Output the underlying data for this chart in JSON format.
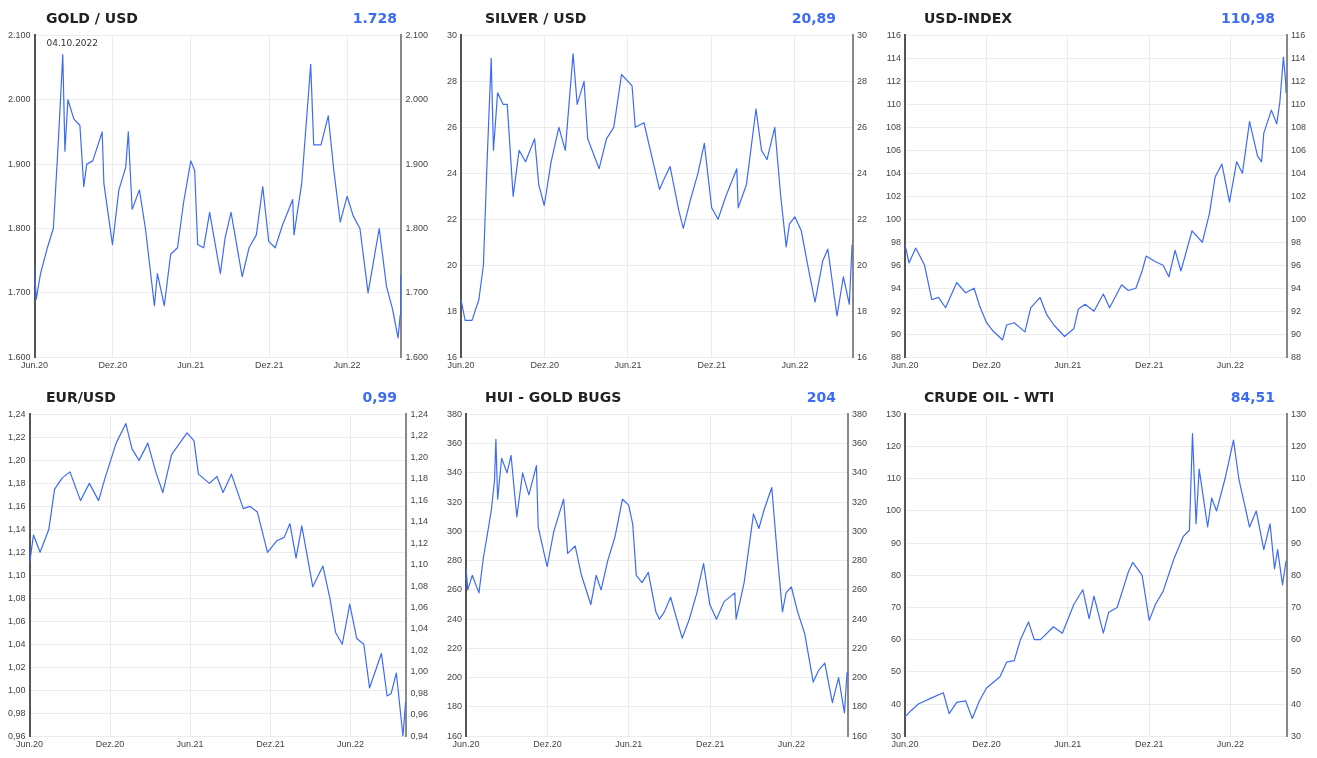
{
  "chart_data": [
    {
      "type": "line",
      "title": "GOLD / USD",
      "annotations": [
        "1.728",
        "04.10.2022"
      ],
      "grid": true,
      "legend": false,
      "marker": "none",
      "x": [
        "2020-06-01",
        "2020-06-05",
        "2020-06-15",
        "2020-07-01",
        "2020-07-15",
        "2020-07-27",
        "2020-08-06",
        "2020-08-11",
        "2020-08-18",
        "2020-09-01",
        "2020-09-15",
        "2020-09-24",
        "2020-10-01",
        "2020-10-15",
        "2020-11-06",
        "2020-11-10",
        "2020-11-30",
        "2020-12-15",
        "2020-12-31",
        "2021-01-06",
        "2021-01-15",
        "2021-02-01",
        "2021-02-15",
        "2021-03-08",
        "2021-03-15",
        "2021-03-31",
        "2021-04-15",
        "2021-05-01",
        "2021-05-15",
        "2021-06-01",
        "2021-06-10",
        "2021-06-17",
        "2021-07-01",
        "2021-07-15",
        "2021-08-09",
        "2021-08-20",
        "2021-09-03",
        "2021-09-29",
        "2021-10-15",
        "2021-11-01",
        "2021-11-16",
        "2021-11-30",
        "2021-12-15",
        "2022-01-01",
        "2022-01-25",
        "2022-01-28",
        "2022-02-15",
        "2022-03-08",
        "2022-03-15",
        "2022-04-01",
        "2022-04-18",
        "2022-05-01",
        "2022-05-16",
        "2022-06-01",
        "2022-06-15",
        "2022-07-01",
        "2022-07-20",
        "2022-08-15",
        "2022-09-01",
        "2022-09-15",
        "2022-09-28",
        "2022-10-03",
        "2022-10-04"
      ],
      "series": [
        {
          "color": "#3d6cf4",
          "values": [
            1740,
            1690,
            1730,
            1770,
            1800,
            1940,
            2070,
            1920,
            2000,
            1970,
            1960,
            1865,
            1900,
            1905,
            1950,
            1870,
            1775,
            1860,
            1895,
            1950,
            1830,
            1860,
            1800,
            1680,
            1730,
            1680,
            1760,
            1770,
            1840,
            1905,
            1890,
            1775,
            1770,
            1825,
            1730,
            1785,
            1825,
            1725,
            1770,
            1790,
            1865,
            1780,
            1770,
            1805,
            1845,
            1790,
            1870,
            2055,
            1930,
            1930,
            1975,
            1890,
            1810,
            1850,
            1820,
            1800,
            1700,
            1800,
            1710,
            1675,
            1630,
            1665,
            1728
          ]
        }
      ],
      "xlim": [
        "2020-06-01",
        "2022-10-06"
      ],
      "xticks": [
        {
          "value": "2020-06-01",
          "label": "Jun.20"
        },
        {
          "value": "2020-12-01",
          "label": "Dez.20"
        },
        {
          "value": "2021-06-01",
          "label": "Jun.21"
        },
        {
          "value": "2021-12-01",
          "label": "Dez.21"
        },
        {
          "value": "2022-06-01",
          "label": "Jun.22"
        }
      ],
      "ylim": [
        1600,
        2100
      ],
      "yticks": [
        {
          "value": 1600,
          "label": "1.600"
        },
        {
          "value": 1700,
          "label": "1.700"
        },
        {
          "value": 1800,
          "label": "1.800"
        },
        {
          "value": 1900,
          "label": "1.900"
        },
        {
          "value": 2000,
          "label": "2.000"
        },
        {
          "value": 2100,
          "label": "2.100"
        }
      ],
      "y2lim": [
        1600,
        2100
      ],
      "y2ticks": [
        {
          "value": 1600,
          "label": "1.600"
        },
        {
          "value": 1700,
          "label": "1.700"
        },
        {
          "value": 1800,
          "label": "1.800"
        },
        {
          "value": 1900,
          "label": "1.900"
        },
        {
          "value": 2000,
          "label": "2.000"
        },
        {
          "value": 2100,
          "label": "2.100"
        }
      ]
    },
    {
      "type": "line",
      "title": "SILVER / USD",
      "annotations": [
        "20,89"
      ],
      "grid": true,
      "legend": false,
      "marker": "none",
      "x": [
        "2020-06-01",
        "2020-06-10",
        "2020-06-25",
        "2020-07-10",
        "2020-07-20",
        "2020-07-28",
        "2020-08-06",
        "2020-08-11",
        "2020-08-20",
        "2020-09-01",
        "2020-09-10",
        "2020-09-23",
        "2020-10-06",
        "2020-10-20",
        "2020-11-09",
        "2020-11-18",
        "2020-11-30",
        "2020-12-15",
        "2021-01-01",
        "2021-01-15",
        "2021-02-01",
        "2021-02-10",
        "2021-02-25",
        "2021-03-05",
        "2021-03-30",
        "2021-04-15",
        "2021-05-01",
        "2021-05-18",
        "2021-06-01",
        "2021-06-10",
        "2021-06-17",
        "2021-07-06",
        "2021-07-20",
        "2021-08-09",
        "2021-08-20",
        "2021-09-01",
        "2021-09-20",
        "2021-09-30",
        "2021-10-15",
        "2021-11-01",
        "2021-11-15",
        "2021-12-01",
        "2021-12-15",
        "2022-01-01",
        "2022-01-25",
        "2022-01-28",
        "2022-02-15",
        "2022-03-08",
        "2022-03-20",
        "2022-04-01",
        "2022-04-18",
        "2022-05-01",
        "2022-05-13",
        "2022-05-20",
        "2022-06-01",
        "2022-06-15",
        "2022-07-01",
        "2022-07-15",
        "2022-08-01",
        "2022-08-12",
        "2022-09-01",
        "2022-09-15",
        "2022-09-28",
        "2022-10-04"
      ],
      "series": [
        {
          "color": "#3d6cf4",
          "values": [
            18.5,
            17.6,
            17.6,
            18.5,
            20.0,
            24.5,
            29.0,
            25.0,
            27.5,
            27.0,
            27.0,
            23.0,
            25.0,
            24.5,
            25.5,
            23.5,
            22.6,
            24.5,
            26.0,
            25.0,
            29.2,
            27.0,
            28.0,
            25.5,
            24.2,
            25.5,
            26.0,
            28.3,
            28.0,
            27.8,
            26.0,
            26.2,
            25.0,
            23.3,
            23.8,
            24.3,
            22.4,
            21.6,
            22.8,
            24.0,
            25.3,
            22.5,
            22.0,
            23.0,
            24.2,
            22.5,
            23.5,
            26.8,
            25.0,
            24.6,
            26.0,
            23.0,
            20.8,
            21.8,
            22.1,
            21.5,
            19.8,
            18.4,
            20.2,
            20.7,
            17.8,
            19.5,
            18.3,
            20.89
          ]
        }
      ],
      "xlim": [
        "2020-06-01",
        "2022-10-06"
      ],
      "xticks": [
        {
          "value": "2020-06-01",
          "label": "Jun.20"
        },
        {
          "value": "2020-12-01",
          "label": "Dez.20"
        },
        {
          "value": "2021-06-01",
          "label": "Jun.21"
        },
        {
          "value": "2021-12-01",
          "label": "Dez.21"
        },
        {
          "value": "2022-06-01",
          "label": "Jun.22"
        }
      ],
      "ylim": [
        16,
        30
      ],
      "yticks": [
        16,
        18,
        20,
        22,
        24,
        26,
        28,
        30
      ],
      "y2lim": [
        16,
        30
      ],
      "y2ticks": [
        16,
        18,
        20,
        22,
        24,
        26,
        28,
        30
      ]
    },
    {
      "type": "line",
      "title": "USD-INDEX",
      "annotations": [
        "110,98"
      ],
      "grid": true,
      "legend": false,
      "marker": "none",
      "x": [
        "2020-06-01",
        "2020-06-10",
        "2020-06-25",
        "2020-07-15",
        "2020-07-31",
        "2020-08-15",
        "2020-08-31",
        "2020-09-25",
        "2020-10-15",
        "2020-11-03",
        "2020-11-15",
        "2020-12-01",
        "2020-12-15",
        "2021-01-06",
        "2021-01-15",
        "2021-02-01",
        "2021-02-25",
        "2021-03-10",
        "2021-03-31",
        "2021-04-15",
        "2021-05-01",
        "2021-05-25",
        "2021-06-15",
        "2021-06-25",
        "2021-07-10",
        "2021-07-30",
        "2021-08-20",
        "2021-09-03",
        "2021-09-30",
        "2021-10-15",
        "2021-11-01",
        "2021-11-15",
        "2021-11-24",
        "2021-12-15",
        "2022-01-01",
        "2022-01-14",
        "2022-01-28",
        "2022-02-10",
        "2022-03-07",
        "2022-03-30",
        "2022-04-15",
        "2022-04-28",
        "2022-05-13",
        "2022-05-30",
        "2022-06-15",
        "2022-06-28",
        "2022-07-14",
        "2022-08-01",
        "2022-08-10",
        "2022-08-15",
        "2022-09-01",
        "2022-09-13",
        "2022-09-20",
        "2022-09-28",
        "2022-10-03",
        "2022-10-04"
      ],
      "series": [
        {
          "color": "#3d6cf4",
          "values": [
            97.8,
            96.2,
            97.5,
            96.0,
            93.0,
            93.2,
            92.3,
            94.5,
            93.6,
            94.0,
            92.5,
            91.0,
            90.3,
            89.5,
            90.8,
            91.0,
            90.2,
            92.3,
            93.2,
            91.7,
            90.8,
            89.8,
            90.5,
            92.2,
            92.6,
            92.0,
            93.5,
            92.3,
            94.3,
            93.8,
            94.0,
            95.5,
            96.8,
            96.3,
            96.0,
            95.0,
            97.3,
            95.5,
            99.0,
            98.0,
            100.5,
            103.7,
            104.8,
            101.5,
            105.0,
            104.0,
            108.5,
            105.5,
            105.0,
            107.5,
            109.5,
            108.3,
            110.2,
            114.1,
            112.0,
            110.98
          ]
        }
      ],
      "xlim": [
        "2020-06-01",
        "2022-10-06"
      ],
      "xticks": [
        {
          "value": "2020-06-01",
          "label": "Jun.20"
        },
        {
          "value": "2020-12-01",
          "label": "Dez.20"
        },
        {
          "value": "2021-06-01",
          "label": "Jun.21"
        },
        {
          "value": "2021-12-01",
          "label": "Dez.21"
        },
        {
          "value": "2022-06-01",
          "label": "Jun.22"
        }
      ],
      "ylim": [
        88,
        116
      ],
      "yticks": [
        88,
        90,
        92,
        94,
        96,
        98,
        100,
        102,
        104,
        106,
        108,
        110,
        112,
        114,
        116
      ],
      "y2lim": [
        88,
        116
      ],
      "y2ticks": [
        88,
        90,
        92,
        94,
        96,
        98,
        100,
        102,
        104,
        106,
        108,
        110,
        112,
        114,
        116
      ]
    },
    {
      "type": "line",
      "title": "EUR/USD",
      "annotations": [
        "0,99"
      ],
      "grid": true,
      "legend": false,
      "marker": "none",
      "x": [
        "2020-06-01",
        "2020-06-10",
        "2020-06-25",
        "2020-07-15",
        "2020-07-28",
        "2020-08-15",
        "2020-09-01",
        "2020-09-25",
        "2020-10-15",
        "2020-11-05",
        "2020-11-20",
        "2020-12-15",
        "2021-01-06",
        "2021-01-20",
        "2021-02-05",
        "2021-02-25",
        "2021-03-15",
        "2021-03-31",
        "2021-04-20",
        "2021-05-25",
        "2021-06-10",
        "2021-06-20",
        "2021-07-15",
        "2021-08-01",
        "2021-08-15",
        "2021-09-03",
        "2021-09-30",
        "2021-10-15",
        "2021-11-01",
        "2021-11-24",
        "2021-12-15",
        "2022-01-01",
        "2022-01-14",
        "2022-01-28",
        "2022-02-10",
        "2022-03-07",
        "2022-03-30",
        "2022-04-15",
        "2022-04-28",
        "2022-05-13",
        "2022-05-30",
        "2022-06-15",
        "2022-07-01",
        "2022-07-14",
        "2022-08-01",
        "2022-08-10",
        "2022-08-23",
        "2022-09-01",
        "2022-09-13",
        "2022-09-28",
        "2022-10-04"
      ],
      "series": [
        {
          "color": "#3d6cf4",
          "values": [
            1.11,
            1.135,
            1.12,
            1.14,
            1.175,
            1.185,
            1.19,
            1.165,
            1.18,
            1.165,
            1.185,
            1.215,
            1.232,
            1.21,
            1.2,
            1.215,
            1.19,
            1.172,
            1.205,
            1.224,
            1.217,
            1.188,
            1.18,
            1.186,
            1.172,
            1.188,
            1.158,
            1.16,
            1.155,
            1.12,
            1.13,
            1.133,
            1.145,
            1.115,
            1.143,
            1.09,
            1.108,
            1.08,
            1.05,
            1.04,
            1.075,
            1.045,
            1.04,
            1.002,
            1.022,
            1.032,
            0.995,
            0.997,
            1.015,
            0.96,
            0.99
          ]
        }
      ],
      "xlim": [
        "2020-06-01",
        "2022-10-06"
      ],
      "xticks": [
        {
          "value": "2020-06-01",
          "label": "Jun.20"
        },
        {
          "value": "2020-12-01",
          "label": "Dez.20"
        },
        {
          "value": "2021-06-01",
          "label": "Jun.21"
        },
        {
          "value": "2021-12-01",
          "label": "Dez.21"
        },
        {
          "value": "2022-06-01",
          "label": "Jun.22"
        }
      ],
      "ylim": [
        0.96,
        1.24
      ],
      "yticks": [
        {
          "value": 0.96,
          "label": "0,96"
        },
        {
          "value": 0.98,
          "label": "0,98"
        },
        {
          "value": 1.0,
          "label": "1,00"
        },
        {
          "value": 1.02,
          "label": "1,02"
        },
        {
          "value": 1.04,
          "label": "1,04"
        },
        {
          "value": 1.06,
          "label": "1,06"
        },
        {
          "value": 1.08,
          "label": "1,08"
        },
        {
          "value": 1.1,
          "label": "1,10"
        },
        {
          "value": 1.12,
          "label": "1,12"
        },
        {
          "value": 1.14,
          "label": "1,14"
        },
        {
          "value": 1.16,
          "label": "1,16"
        },
        {
          "value": 1.18,
          "label": "1,18"
        },
        {
          "value": 1.2,
          "label": "1,20"
        },
        {
          "value": 1.22,
          "label": "1,22"
        },
        {
          "value": 1.24,
          "label": "1,24"
        }
      ],
      "y2lim": [
        0.94,
        1.24
      ],
      "y2ticks": [
        {
          "value": 0.94,
          "label": "0,94"
        },
        {
          "value": 0.96,
          "label": "0,96"
        },
        {
          "value": 0.98,
          "label": "0,98"
        },
        {
          "value": 1.0,
          "label": "1,00"
        },
        {
          "value": 1.02,
          "label": "1,02"
        },
        {
          "value": 1.04,
          "label": "1,04"
        },
        {
          "value": 1.06,
          "label": "1,06"
        },
        {
          "value": 1.08,
          "label": "1,08"
        },
        {
          "value": 1.1,
          "label": "1,10"
        },
        {
          "value": 1.12,
          "label": "1,12"
        },
        {
          "value": 1.14,
          "label": "1,14"
        },
        {
          "value": 1.16,
          "label": "1,16"
        },
        {
          "value": 1.18,
          "label": "1,18"
        },
        {
          "value": 1.2,
          "label": "1,20"
        },
        {
          "value": 1.22,
          "label": "1,22"
        },
        {
          "value": 1.24,
          "label": "1,24"
        }
      ]
    },
    {
      "type": "line",
      "title": "HUI - GOLD BUGS",
      "annotations": [
        "204"
      ],
      "grid": true,
      "legend": false,
      "marker": "none",
      "x": [
        "2020-06-01",
        "2020-06-05",
        "2020-06-15",
        "2020-06-30",
        "2020-07-10",
        "2020-07-20",
        "2020-07-28",
        "2020-08-04",
        "2020-08-07",
        "2020-08-11",
        "2020-08-20",
        "2020-09-01",
        "2020-09-10",
        "2020-09-23",
        "2020-10-06",
        "2020-10-20",
        "2020-11-06",
        "2020-11-10",
        "2020-11-30",
        "2020-12-15",
        "2021-01-06",
        "2021-01-15",
        "2021-02-01",
        "2021-02-15",
        "2021-03-08",
        "2021-03-20",
        "2021-03-31",
        "2021-04-15",
        "2021-05-01",
        "2021-05-18",
        "2021-06-01",
        "2021-06-10",
        "2021-06-18",
        "2021-07-01",
        "2021-07-15",
        "2021-08-01",
        "2021-08-09",
        "2021-08-20",
        "2021-09-03",
        "2021-09-29",
        "2021-10-15",
        "2021-11-01",
        "2021-11-16",
        "2021-11-30",
        "2021-12-15",
        "2022-01-01",
        "2022-01-25",
        "2022-01-28",
        "2022-02-15",
        "2022-03-08",
        "2022-03-20",
        "2022-04-01",
        "2022-04-18",
        "2022-05-01",
        "2022-05-12",
        "2022-05-20",
        "2022-06-01",
        "2022-06-15",
        "2022-07-01",
        "2022-07-20",
        "2022-08-01",
        "2022-08-15",
        "2022-09-01",
        "2022-09-15",
        "2022-09-28",
        "2022-10-04"
      ],
      "series": [
        {
          "color": "#3d6cf4",
          "values": [
            275,
            260,
            270,
            258,
            282,
            300,
            315,
            335,
            363,
            322,
            350,
            340,
            352,
            310,
            340,
            325,
            345,
            303,
            276,
            300,
            322,
            285,
            290,
            270,
            250,
            270,
            260,
            280,
            296,
            322,
            318,
            305,
            270,
            265,
            272,
            245,
            240,
            245,
            255,
            227,
            240,
            258,
            278,
            250,
            240,
            252,
            258,
            240,
            265,
            312,
            302,
            315,
            330,
            282,
            245,
            258,
            262,
            245,
            230,
            197,
            205,
            210,
            183,
            200,
            176,
            204
          ]
        }
      ],
      "xlim": [
        "2020-06-01",
        "2022-10-06"
      ],
      "xticks": [
        {
          "value": "2020-06-01",
          "label": "Jun.20"
        },
        {
          "value": "2020-12-01",
          "label": "Dez.20"
        },
        {
          "value": "2021-06-01",
          "label": "Jun.21"
        },
        {
          "value": "2021-12-01",
          "label": "Dez.21"
        },
        {
          "value": "2022-06-01",
          "label": "Jun.22"
        }
      ],
      "ylim": [
        160,
        380
      ],
      "yticks": [
        160,
        180,
        200,
        220,
        240,
        260,
        280,
        300,
        320,
        340,
        360,
        380
      ],
      "y2lim": [
        160,
        380
      ],
      "y2ticks": [
        160,
        180,
        200,
        220,
        240,
        260,
        280,
        300,
        320,
        340,
        360,
        380
      ]
    },
    {
      "type": "line",
      "title": "CRUDE OIL - WTI",
      "annotations": [
        "84,51"
      ],
      "grid": true,
      "legend": false,
      "marker": "none",
      "x": [
        "2020-06-01",
        "2020-06-15",
        "2020-07-01",
        "2020-08-01",
        "2020-08-26",
        "2020-09-08",
        "2020-09-25",
        "2020-10-15",
        "2020-10-30",
        "2020-11-15",
        "2020-12-01",
        "2020-12-31",
        "2021-01-15",
        "2021-02-01",
        "2021-02-15",
        "2021-03-05",
        "2021-03-18",
        "2021-04-01",
        "2021-04-30",
        "2021-05-20",
        "2021-06-15",
        "2021-07-05",
        "2021-07-19",
        "2021-07-30",
        "2021-08-20",
        "2021-09-01",
        "2021-09-20",
        "2021-10-15",
        "2021-10-25",
        "2021-11-15",
        "2021-12-01",
        "2021-12-15",
        "2022-01-01",
        "2022-01-25",
        "2022-02-15",
        "2022-03-01",
        "2022-03-08",
        "2022-03-16",
        "2022-03-23",
        "2022-04-11",
        "2022-04-20",
        "2022-05-01",
        "2022-05-20",
        "2022-06-08",
        "2022-06-20",
        "2022-07-14",
        "2022-07-29",
        "2022-08-15",
        "2022-08-29",
        "2022-09-08",
        "2022-09-15",
        "2022-09-26",
        "2022-10-04"
      ],
      "series": [
        {
          "color": "#3d6cf4",
          "values": [
            36,
            38,
            40,
            42,
            43.5,
            37,
            40.5,
            41,
            35.5,
            41,
            45,
            48.5,
            53,
            53.5,
            60,
            65.5,
            60,
            60,
            64,
            62,
            71,
            75.5,
            66.5,
            73.5,
            62,
            68.5,
            70,
            81,
            84,
            80,
            66,
            71,
            75,
            85,
            92,
            94,
            124,
            96,
            113,
            95,
            104,
            100,
            110,
            122,
            110,
            95,
            100,
            88,
            96,
            82,
            88,
            77,
            84.51
          ]
        }
      ],
      "xlim": [
        "2020-06-01",
        "2022-10-06"
      ],
      "xticks": [
        {
          "value": "2020-06-01",
          "label": "Jun.20"
        },
        {
          "value": "2020-12-01",
          "label": "Dez.20"
        },
        {
          "value": "2021-06-01",
          "label": "Jun.21"
        },
        {
          "value": "2021-12-01",
          "label": "Dez.21"
        },
        {
          "value": "2022-06-01",
          "label": "Jun.22"
        }
      ],
      "ylim": [
        30,
        130
      ],
      "yticks": [
        30,
        40,
        50,
        60,
        70,
        80,
        90,
        100,
        110,
        120,
        130
      ],
      "y2lim": [
        30,
        130
      ],
      "y2ticks": [
        30,
        40,
        50,
        60,
        70,
        80,
        90,
        100,
        110,
        120,
        130
      ]
    }
  ]
}
